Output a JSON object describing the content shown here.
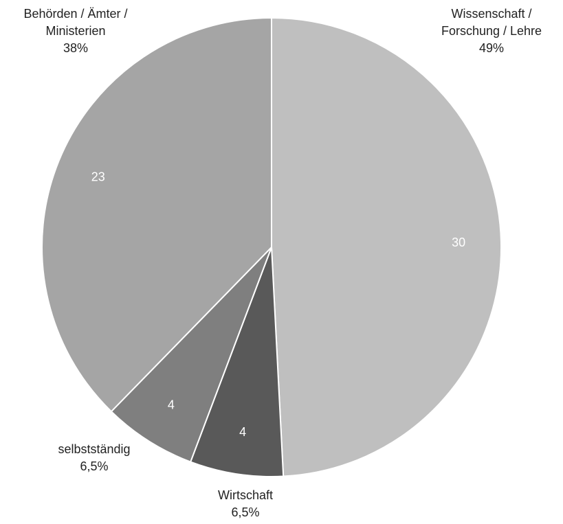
{
  "chart_data": {
    "type": "pie",
    "title": "",
    "start_angle_deg": 0,
    "direction": "clockwise",
    "slices": [
      {
        "name_lines": [
          "Wissenschaft /",
          "Forschung / Lehre"
        ],
        "value": 30,
        "value_label": "30",
        "percent_label": "49%",
        "color": "#bfbfbf"
      },
      {
        "name_lines": [
          "Wirtschaft"
        ],
        "value": 4,
        "value_label": "4",
        "percent_label": "6,5%",
        "color": "#595959"
      },
      {
        "name_lines": [
          "selbstständig"
        ],
        "value": 4,
        "value_label": "4",
        "percent_label": "6,5%",
        "color": "#7f7f7f"
      },
      {
        "name_lines": [
          "Behörden / Ämter /",
          "Ministerien"
        ],
        "value": 23,
        "value_label": "23",
        "percent_label": "38%",
        "color": "#a5a5a5"
      }
    ],
    "slice_border_color": "#ffffff"
  }
}
